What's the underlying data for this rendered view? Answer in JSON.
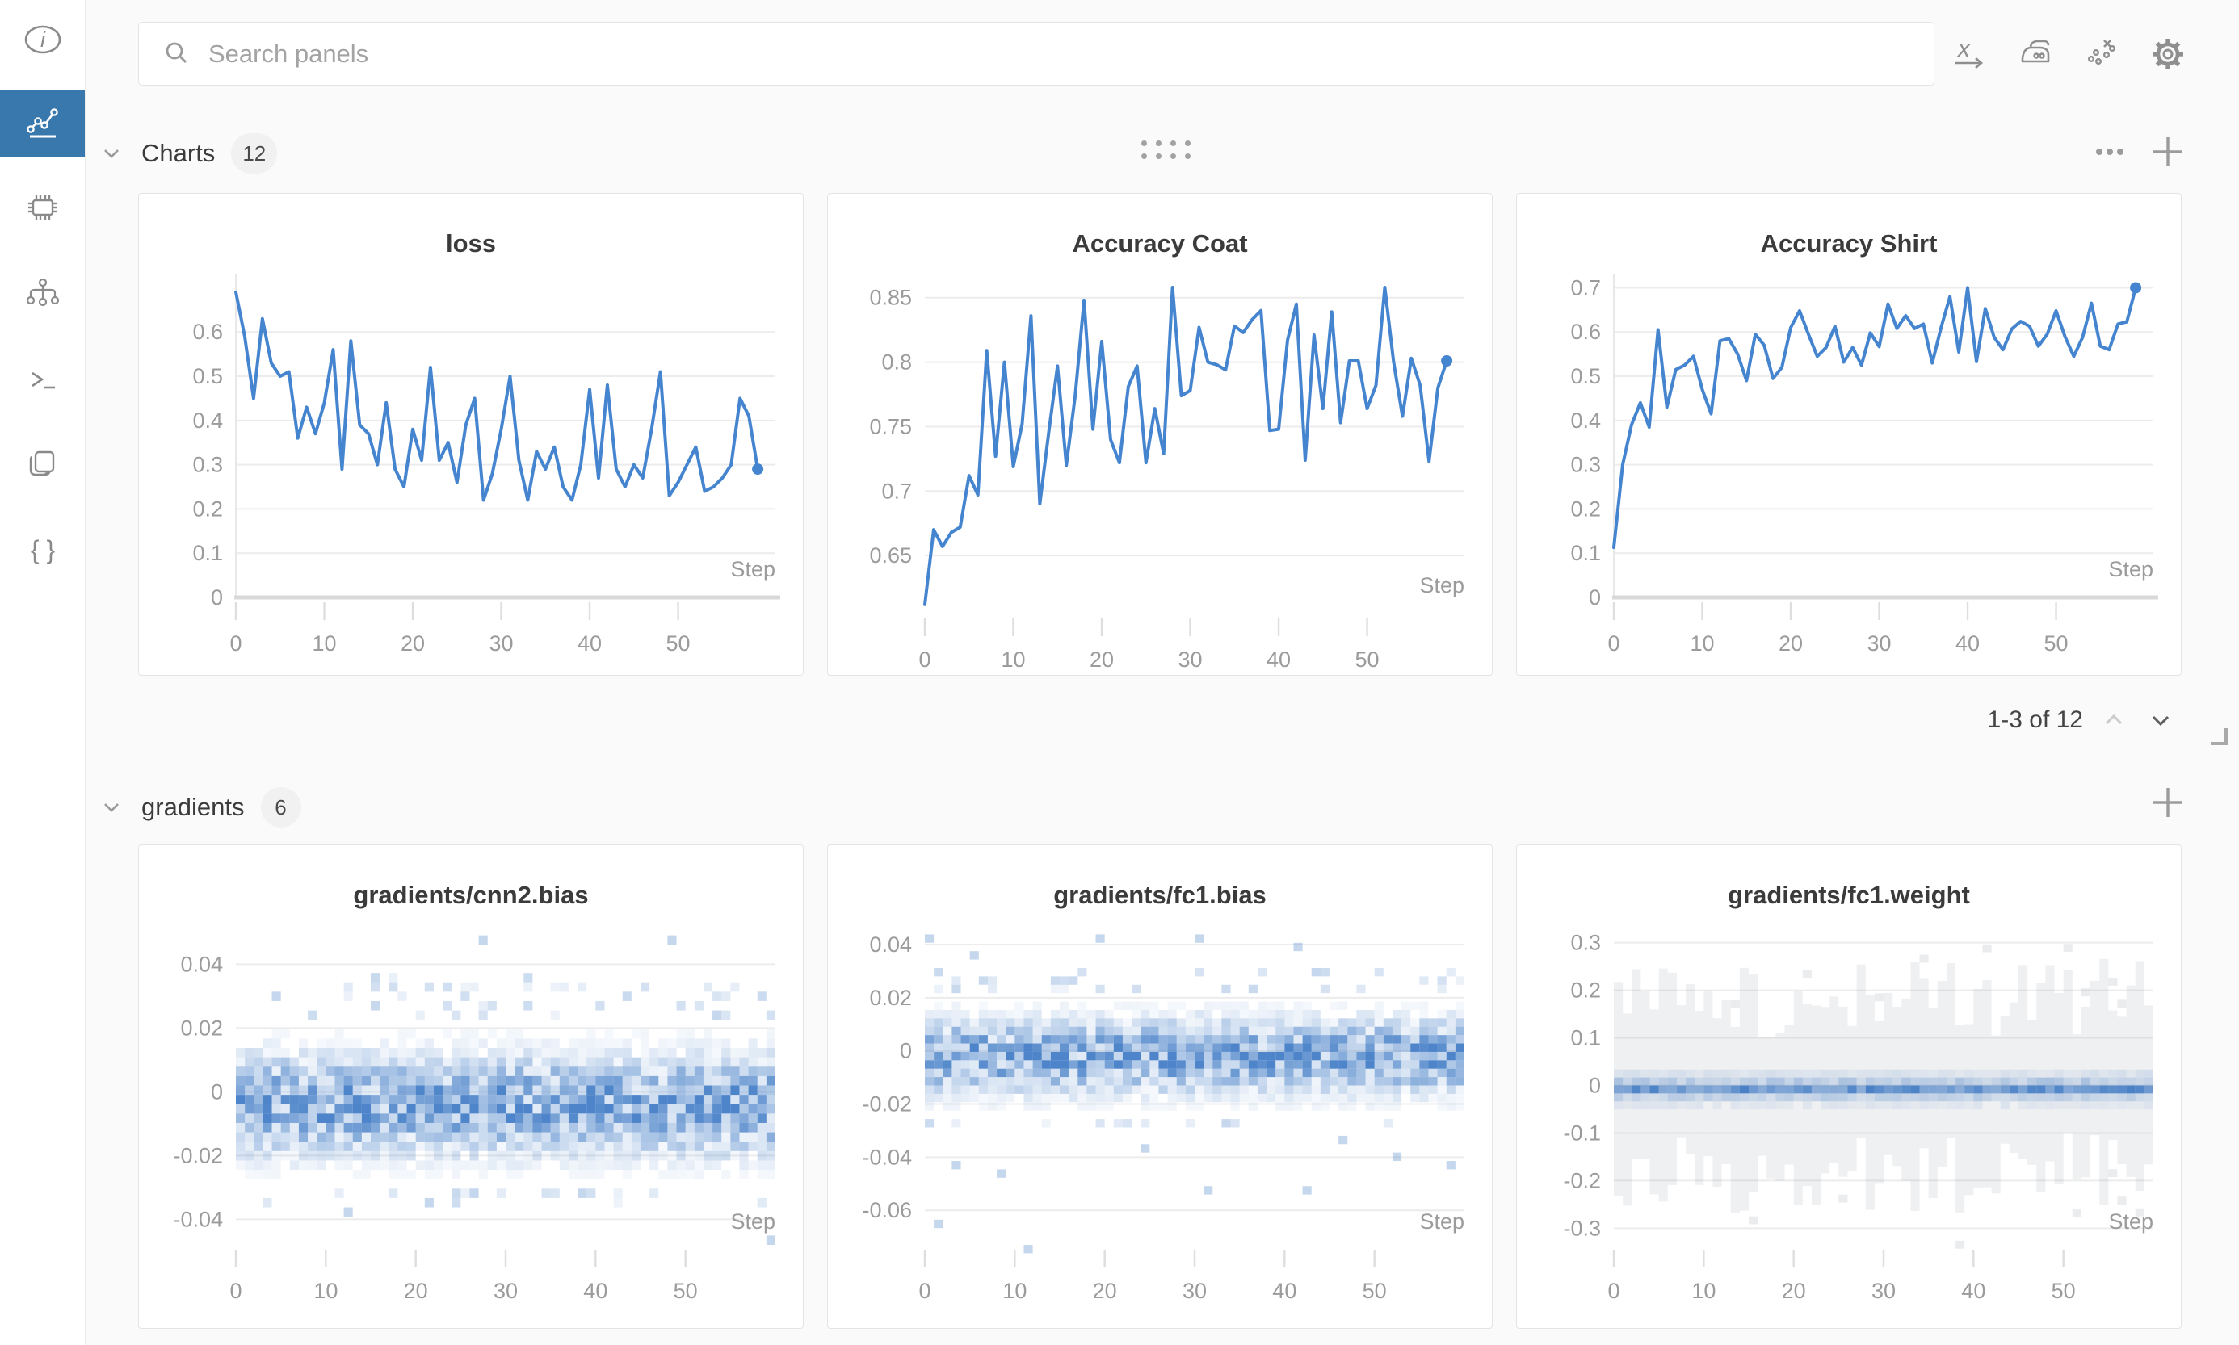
{
  "colors": {
    "accent": "#3878ad",
    "line_blue": "#4584cf",
    "heat_blue": "#3e7ac5",
    "grid": "#ececec",
    "axis": "#d9d9d9",
    "tick_text": "#9b9b9b"
  },
  "topbar": {
    "search": {
      "placeholder": "Search panels",
      "value": ""
    },
    "icons": [
      {
        "name": "x-axis-icon"
      },
      {
        "name": "smoothing-iron-icon"
      },
      {
        "name": "outliers-icon"
      },
      {
        "name": "settings-gear-icon"
      }
    ],
    "x_axis_glyph": "x"
  },
  "sidebar": {
    "items": [
      {
        "name": "info",
        "active": false
      },
      {
        "name": "panels-charts",
        "active": true
      },
      {
        "name": "system",
        "active": false
      },
      {
        "name": "model",
        "active": false
      },
      {
        "name": "logs",
        "active": false
      },
      {
        "name": "files",
        "active": false
      },
      {
        "name": "config",
        "active": false
      }
    ],
    "braces_glyph": "{ }",
    "info_glyph": "i"
  },
  "sections": [
    {
      "title": "Charts",
      "badge": "12",
      "pagination": "1-3 of 12",
      "panels": [
        0,
        1,
        2
      ]
    },
    {
      "title": "gradients",
      "badge": "6",
      "panels": [
        3,
        4,
        5
      ]
    }
  ],
  "chart_data": [
    {
      "type": "line",
      "title": "loss",
      "xlabel": "Step",
      "x": {
        "min": 0,
        "max": 61,
        "ticks": [
          0,
          10,
          20,
          30,
          40,
          50
        ]
      },
      "y": {
        "min": 0,
        "max": 0.73,
        "ticks": [
          0,
          0.1,
          0.2,
          0.3,
          0.4,
          0.5,
          0.6
        ],
        "zero_based": true
      },
      "values": [
        0.69,
        0.59,
        0.45,
        0.63,
        0.53,
        0.5,
        0.51,
        0.36,
        0.43,
        0.37,
        0.44,
        0.56,
        0.29,
        0.58,
        0.39,
        0.37,
        0.3,
        0.44,
        0.29,
        0.25,
        0.38,
        0.31,
        0.52,
        0.31,
        0.35,
        0.26,
        0.39,
        0.45,
        0.22,
        0.28,
        0.38,
        0.5,
        0.31,
        0.22,
        0.33,
        0.29,
        0.34,
        0.25,
        0.22,
        0.3,
        0.47,
        0.27,
        0.48,
        0.29,
        0.25,
        0.3,
        0.27,
        0.38,
        0.51,
        0.23,
        0.26,
        0.3,
        0.34,
        0.24,
        0.25,
        0.27,
        0.3,
        0.45,
        0.41,
        0.29
      ],
      "end_marker": true
    },
    {
      "type": "line",
      "title": "Accuracy Coat",
      "xlabel": "Step",
      "x": {
        "min": 0,
        "max": 61,
        "ticks": [
          0,
          10,
          20,
          30,
          40,
          50
        ]
      },
      "y": {
        "min": 0.605,
        "max": 0.868,
        "ticks": [
          0.65,
          0.7,
          0.75,
          0.8,
          0.85
        ],
        "zero_based": false
      },
      "values": [
        0.612,
        0.67,
        0.657,
        0.668,
        0.672,
        0.712,
        0.697,
        0.809,
        0.727,
        0.8,
        0.719,
        0.752,
        0.836,
        0.69,
        0.745,
        0.797,
        0.72,
        0.774,
        0.848,
        0.748,
        0.816,
        0.74,
        0.722,
        0.781,
        0.797,
        0.722,
        0.764,
        0.729,
        0.858,
        0.774,
        0.778,
        0.827,
        0.8,
        0.798,
        0.794,
        0.828,
        0.823,
        0.833,
        0.84,
        0.747,
        0.748,
        0.817,
        0.845,
        0.724,
        0.821,
        0.764,
        0.839,
        0.753,
        0.801,
        0.801,
        0.764,
        0.782,
        0.858,
        0.8,
        0.758,
        0.803,
        0.782,
        0.723,
        0.78,
        0.801
      ],
      "end_marker": true
    },
    {
      "type": "line",
      "title": "Accuracy Shirt",
      "xlabel": "Step",
      "x": {
        "min": 0,
        "max": 61,
        "ticks": [
          0,
          10,
          20,
          30,
          40,
          50
        ]
      },
      "y": {
        "min": 0,
        "max": 0.73,
        "ticks": [
          0,
          0.1,
          0.2,
          0.3,
          0.4,
          0.5,
          0.6,
          0.7
        ],
        "zero_based": true
      },
      "values": [
        0.113,
        0.3,
        0.39,
        0.44,
        0.385,
        0.605,
        0.43,
        0.515,
        0.525,
        0.545,
        0.47,
        0.415,
        0.58,
        0.585,
        0.55,
        0.49,
        0.595,
        0.57,
        0.495,
        0.52,
        0.61,
        0.648,
        0.595,
        0.545,
        0.565,
        0.613,
        0.532,
        0.565,
        0.525,
        0.598,
        0.567,
        0.663,
        0.608,
        0.637,
        0.608,
        0.618,
        0.53,
        0.61,
        0.68,
        0.555,
        0.7,
        0.533,
        0.653,
        0.588,
        0.56,
        0.607,
        0.624,
        0.613,
        0.568,
        0.595,
        0.648,
        0.59,
        0.545,
        0.588,
        0.665,
        0.568,
        0.56,
        0.618,
        0.623,
        0.7
      ],
      "end_marker": true
    },
    {
      "type": "heatmap",
      "title": "gradients/cnn2.bias",
      "xlabel": "Step",
      "x": {
        "min": 0,
        "max": 60,
        "ticks": [
          0,
          10,
          20,
          30,
          40,
          50
        ]
      },
      "y": {
        "min": -0.048,
        "max": 0.052,
        "ticks": [
          0.04,
          0.02,
          0,
          -0.02,
          -0.04
        ]
      },
      "distribution": {
        "seed": 7,
        "cols": 60,
        "rows": 34,
        "center": -0.004,
        "sigma": 0.0095,
        "scatter_prob": 0.13,
        "scatter_span": [
          -0.036,
          0.036
        ],
        "outlier_cells": [
          [
            27,
            0.048
          ],
          [
            48,
            0.047
          ],
          [
            59,
            -0.046
          ],
          [
            12,
            -0.039
          ],
          [
            21,
            -0.035
          ],
          [
            38,
            -0.033
          ]
        ]
      }
    },
    {
      "type": "heatmap",
      "title": "gradients/fc1.bias",
      "xlabel": "Step",
      "x": {
        "min": 0,
        "max": 60,
        "ticks": [
          0,
          10,
          20,
          30,
          40,
          50
        ]
      },
      "y": {
        "min": -0.073,
        "max": 0.047,
        "ticks": [
          0.04,
          0.02,
          0,
          -0.02,
          -0.04,
          -0.06
        ]
      },
      "distribution": {
        "seed": 11,
        "cols": 60,
        "rows": 38,
        "center": -0.002,
        "sigma": 0.0085,
        "scatter_prob": 0.17,
        "scatter_span": [
          -0.03,
          0.032
        ],
        "outlier_cells": [
          [
            0,
            0.042
          ],
          [
            19,
            0.043
          ],
          [
            30,
            0.043
          ],
          [
            41,
            0.039
          ],
          [
            5,
            0.037
          ],
          [
            1,
            -0.064
          ],
          [
            11,
            -0.075
          ],
          [
            31,
            -0.053
          ],
          [
            42,
            -0.053
          ],
          [
            8,
            -0.047
          ],
          [
            3,
            -0.044
          ],
          [
            52,
            -0.041
          ],
          [
            58,
            -0.042
          ],
          [
            46,
            -0.035
          ],
          [
            24,
            -0.036
          ]
        ]
      }
    },
    {
      "type": "heatmap-bars",
      "title": "gradients/fc1.weight",
      "xlabel": "Step",
      "x": {
        "min": 0,
        "max": 60,
        "ticks": [
          0,
          10,
          20,
          30,
          40,
          50
        ]
      },
      "y": {
        "min": -0.335,
        "max": 0.335,
        "ticks": [
          0.3,
          0.2,
          0.1,
          0,
          -0.1,
          -0.2,
          -0.3
        ]
      },
      "distribution": {
        "seed": 5,
        "cols": 60,
        "rows": 40,
        "center": -0.006,
        "sigma": 0.02,
        "core": [
          -0.021,
          0.004
        ],
        "gray_span": [
          0.1,
          0.27
        ],
        "gray_alpha": 0.1,
        "outlier_prob": 0.09
      }
    }
  ]
}
